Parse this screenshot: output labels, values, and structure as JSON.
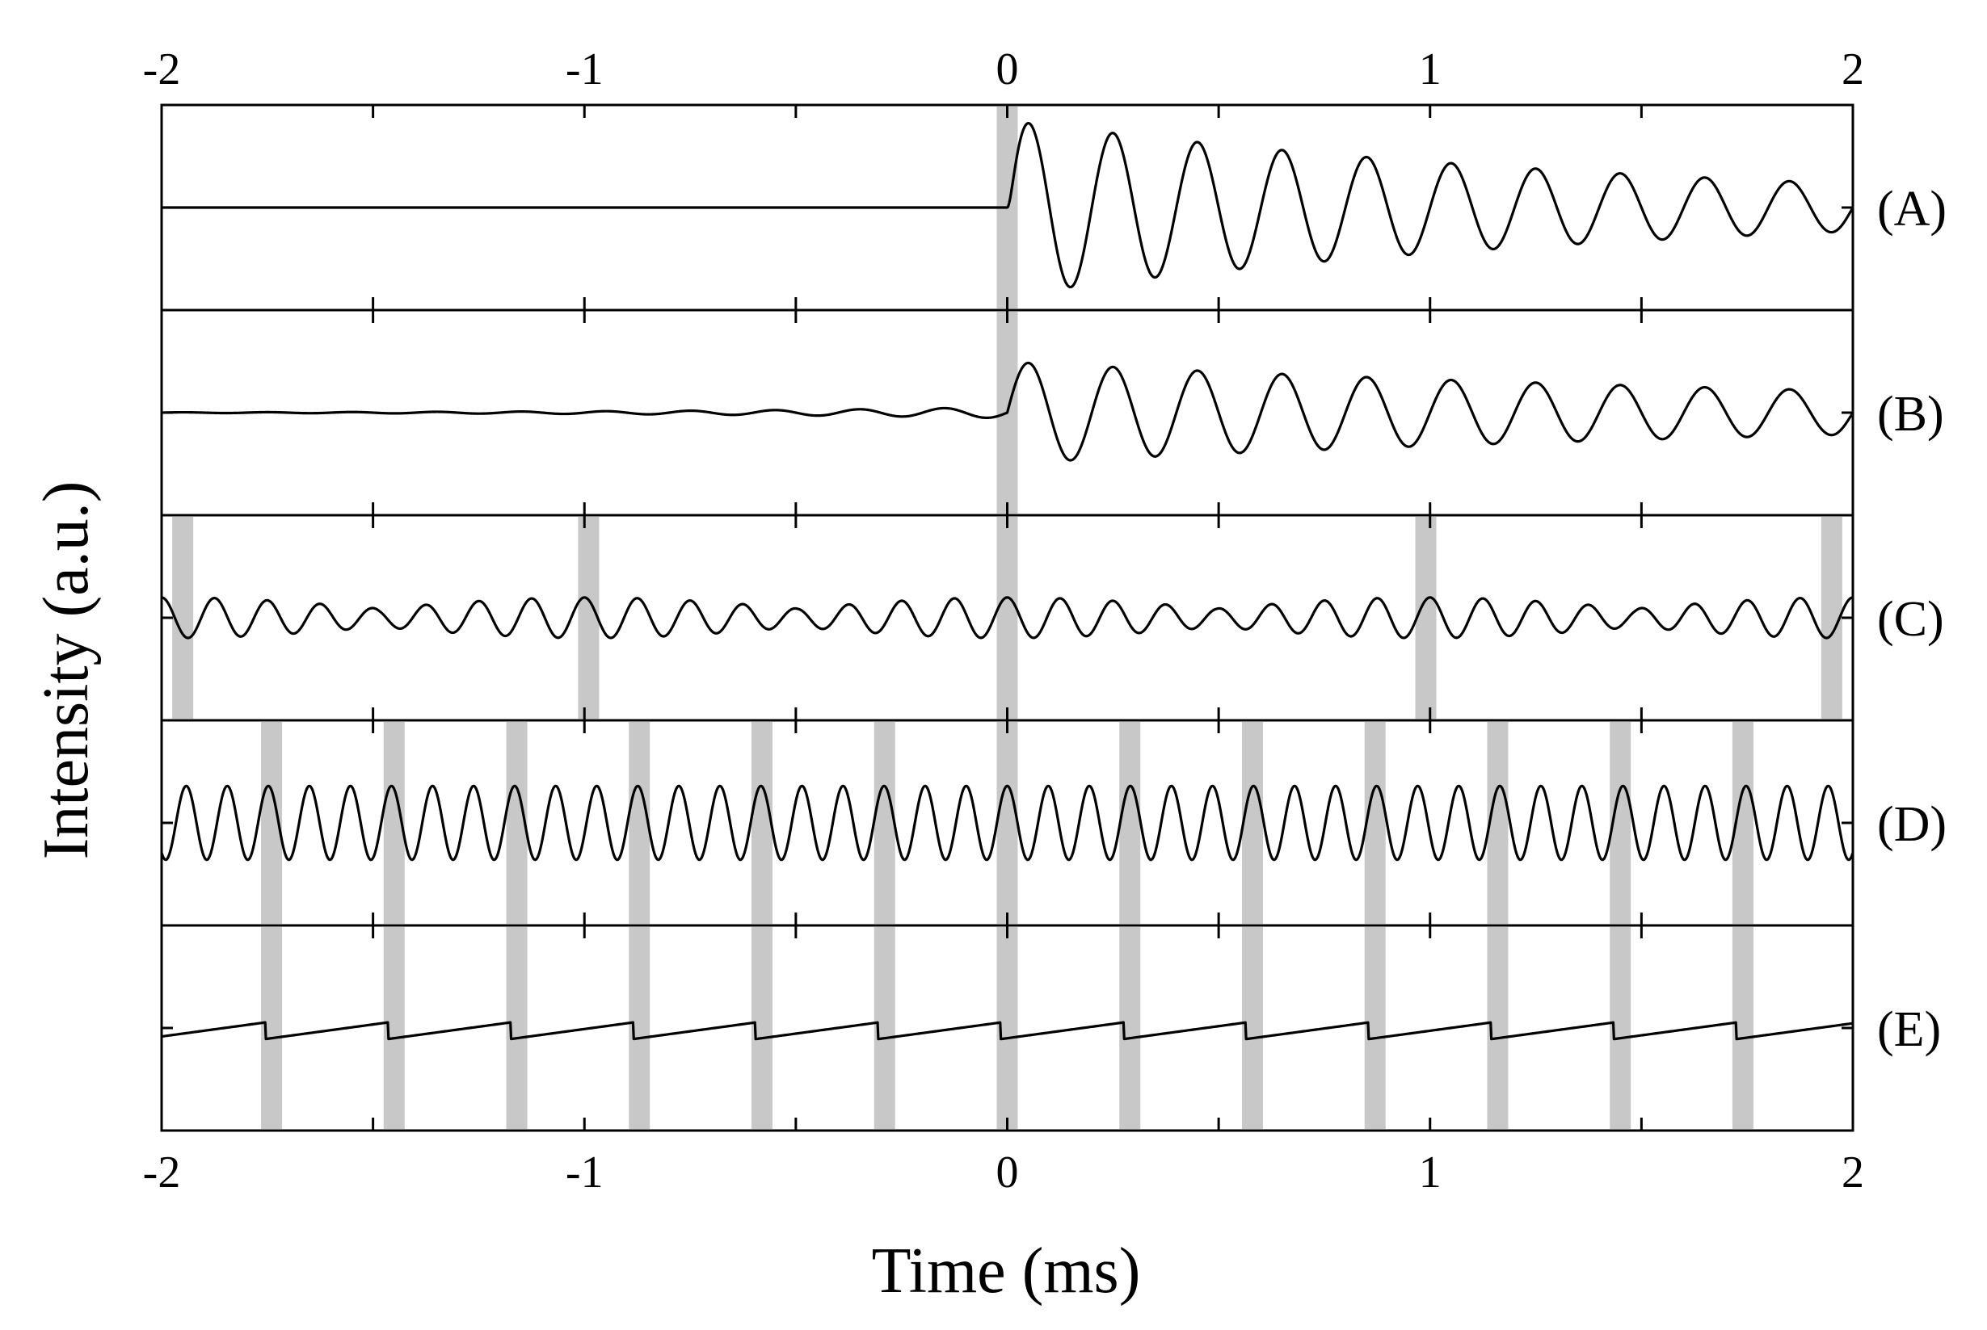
{
  "chart_data": {
    "type": "line",
    "title": "",
    "xlabel": "Time (ms)",
    "ylabel": "Intensity (a.u.)",
    "xlim": [
      -2,
      2
    ],
    "x_ticks": [
      -2,
      -1,
      0,
      1,
      2
    ],
    "x_tick_labels": [
      "-2",
      "-1",
      "0",
      "1",
      "2"
    ],
    "grid": false,
    "legend": "none",
    "panels": [
      {
        "name": "(A)",
        "highlight_times_ms": [
          0
        ],
        "signal": {
          "kind": "decaying",
          "onset_ms": 0,
          "freq_khz": 5.0,
          "amp": 0.95,
          "decay_per_ms": 0.65,
          "baseline": 0
        }
      },
      {
        "name": "(B)",
        "highlight_times_ms": [
          0
        ],
        "signal": {
          "kind": "decaying_with_precursor",
          "onset_ms": 0,
          "freq_khz": 5.0,
          "amp": 0.55,
          "decay_per_ms": 0.42,
          "precursor_amp": 0.06,
          "baseline": 0
        }
      },
      {
        "name": "(C)",
        "highlight_times_ms": [
          -1.95,
          -0.99,
          0,
          0.99,
          1.95
        ],
        "signal": {
          "kind": "periodic_beating",
          "period_ms": 0.99,
          "freq_khz": 8.0,
          "amp": 0.22,
          "baseline": 0
        }
      },
      {
        "name": "(D)",
        "highlight_times_ms": [
          -1.74,
          -1.45,
          -1.16,
          -0.87,
          -0.58,
          -0.29,
          0,
          0.29,
          0.58,
          0.87,
          1.16,
          1.45,
          1.74
        ],
        "signal": {
          "kind": "sinusoid",
          "freq_khz": 10.3,
          "amp": 0.4,
          "baseline": 0
        }
      },
      {
        "name": "(E)",
        "highlight_times_ms": [
          -1.74,
          -1.45,
          -1.16,
          -0.87,
          -0.58,
          -0.29,
          0,
          0.29,
          0.58,
          0.87,
          1.16,
          1.45,
          1.74
        ],
        "signal": {
          "kind": "sawtooth",
          "period_ms": 0.29,
          "low": -0.12,
          "high": 0.06,
          "baseline": 0
        }
      }
    ]
  }
}
